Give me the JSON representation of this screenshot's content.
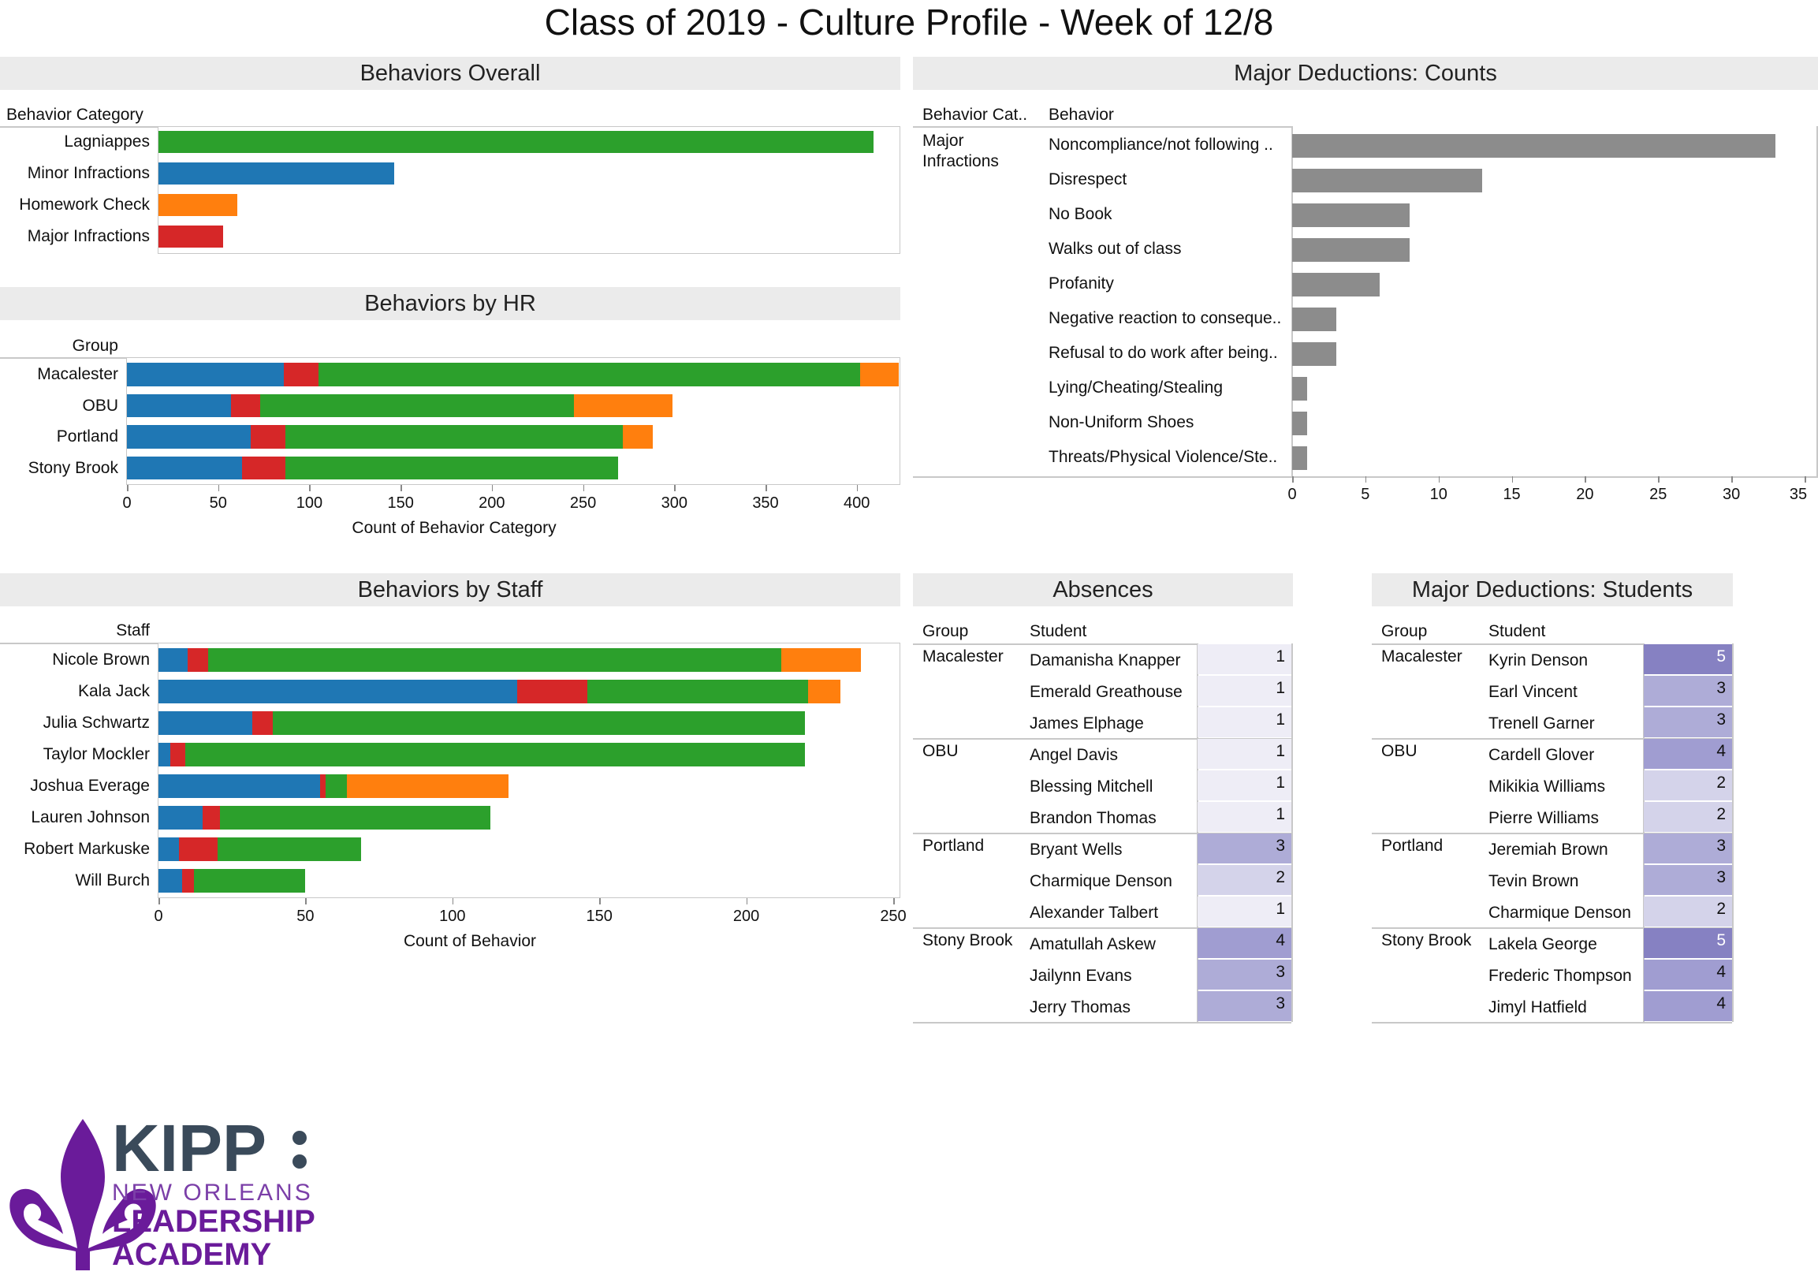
{
  "title": "Class of 2019 - Culture Profile - Week of 12/8",
  "colors": {
    "minor_infractions": "#1f77b4",
    "major_infractions": "#d62728",
    "lagniappes": "#2ca02c",
    "homework_check": "#ff7f0e",
    "major_counts_bar": "#8c8c8c",
    "heat_1": "#eeedf6",
    "heat_2": "#d4d3ea",
    "heat_3": "#aeacd7",
    "heat_4": "#a09dd1",
    "heat_5": "#8681c2"
  },
  "chart_data": [
    {
      "id": "behaviors_overall",
      "type": "bar",
      "title": "Behaviors Overall",
      "row_header": "Behavior Category",
      "categories": [
        "Lagniappes",
        "Minor Infractions",
        "Homework Check",
        "Major Infractions"
      ],
      "values": [
        407,
        134,
        45,
        37
      ],
      "series_colors": [
        "lagniappes",
        "minor_infractions",
        "homework_check",
        "major_infractions"
      ],
      "ylim": [
        0,
        420
      ]
    },
    {
      "id": "behaviors_by_hr",
      "type": "bar",
      "stacked": true,
      "title": "Behaviors by HR",
      "row_header": "Group",
      "xlabel": "Count of Behavior Category",
      "categories": [
        "Macalester",
        "OBU",
        "Portland",
        "Stony Brook"
      ],
      "series": [
        {
          "color_key": "minor_infractions",
          "values": [
            86,
            57,
            68,
            63
          ]
        },
        {
          "color_key": "major_infractions",
          "values": [
            19,
            16,
            19,
            24
          ]
        },
        {
          "color_key": "lagniappes",
          "values": [
            297,
            172,
            185,
            182
          ]
        },
        {
          "color_key": "homework_check",
          "values": [
            21,
            54,
            16,
            0
          ]
        }
      ],
      "xlim": [
        0,
        420
      ],
      "ticks": [
        0,
        50,
        100,
        150,
        200,
        250,
        300,
        350,
        400
      ]
    },
    {
      "id": "behaviors_by_staff",
      "type": "bar",
      "stacked": true,
      "title": "Behaviors by Staff",
      "row_header": "Staff",
      "xlabel": "Count of Behavior",
      "categories": [
        "Nicole Brown",
        "Kala Jack",
        "Julia Schwartz",
        "Taylor Mockler",
        "Joshua Everage",
        "Lauren Johnson",
        "Robert Markuske",
        "Will Burch"
      ],
      "series": [
        {
          "color_key": "minor_infractions",
          "values": [
            10,
            122,
            32,
            4,
            55,
            15,
            7,
            8
          ]
        },
        {
          "color_key": "major_infractions",
          "values": [
            7,
            24,
            7,
            5,
            2,
            6,
            13,
            4
          ]
        },
        {
          "color_key": "lagniappes",
          "values": [
            195,
            75,
            181,
            211,
            7,
            92,
            49,
            38
          ]
        },
        {
          "color_key": "homework_check",
          "values": [
            27,
            11,
            0,
            0,
            55,
            0,
            0,
            0
          ]
        }
      ],
      "xlim": [
        0,
        250
      ],
      "ticks": [
        0,
        50,
        100,
        150,
        200,
        250
      ]
    },
    {
      "id": "major_deductions_counts",
      "type": "bar",
      "title": "Major Deductions: Counts",
      "row_headers": [
        "Behavior Cat..",
        "Behavior"
      ],
      "group_label": "Major Infractions",
      "categories": [
        "Noncompliance/not following ..",
        "Disrespect",
        "No Book",
        "Walks out of class",
        "Profanity",
        "Negative reaction to conseque..",
        "Refusal to do work after being..",
        "Lying/Cheating/Stealing",
        "Non-Uniform Shoes",
        "Threats/Physical Violence/Ste.."
      ],
      "values": [
        33,
        13,
        8,
        8,
        6,
        3,
        3,
        1,
        1,
        1
      ],
      "xlim": [
        0,
        35
      ],
      "ticks": [
        0,
        5,
        10,
        15,
        20,
        25,
        30,
        35
      ]
    },
    {
      "id": "absences",
      "type": "table",
      "title": "Absences",
      "columns": [
        "Group",
        "Student"
      ],
      "groups": [
        {
          "group": "Macalester",
          "rows": [
            {
              "student": "Damanisha Knapper",
              "value": 1
            },
            {
              "student": "Emerald Greathouse",
              "value": 1
            },
            {
              "student": "James Elphage",
              "value": 1
            }
          ]
        },
        {
          "group": "OBU",
          "rows": [
            {
              "student": "Angel Davis",
              "value": 1
            },
            {
              "student": "Blessing Mitchell",
              "value": 1
            },
            {
              "student": "Brandon Thomas",
              "value": 1
            }
          ]
        },
        {
          "group": "Portland",
          "rows": [
            {
              "student": "Bryant Wells",
              "value": 3
            },
            {
              "student": "Charmique Denson",
              "value": 2
            },
            {
              "student": "Alexander Talbert",
              "value": 1
            }
          ]
        },
        {
          "group": "Stony Brook",
          "rows": [
            {
              "student": "Amatullah Askew",
              "value": 4
            },
            {
              "student": "Jailynn Evans",
              "value": 3
            },
            {
              "student": "Jerry Thomas",
              "value": 3
            }
          ]
        }
      ]
    },
    {
      "id": "major_deductions_students",
      "type": "table",
      "title": "Major Deductions: Students",
      "columns": [
        "Group",
        "Student"
      ],
      "groups": [
        {
          "group": "Macalester",
          "rows": [
            {
              "student": "Kyrin Denson",
              "value": 5
            },
            {
              "student": "Earl Vincent",
              "value": 3
            },
            {
              "student": "Trenell Garner",
              "value": 3
            }
          ]
        },
        {
          "group": "OBU",
          "rows": [
            {
              "student": "Cardell Glover",
              "value": 4
            },
            {
              "student": "Mikikia Williams",
              "value": 2
            },
            {
              "student": "Pierre Williams",
              "value": 2
            }
          ]
        },
        {
          "group": "Portland",
          "rows": [
            {
              "student": "Jeremiah Brown",
              "value": 3
            },
            {
              "student": "Tevin Brown",
              "value": 3
            },
            {
              "student": "Charmique Denson",
              "value": 2
            }
          ]
        },
        {
          "group": "Stony Brook",
          "rows": [
            {
              "student": "Lakela George",
              "value": 5
            },
            {
              "student": "Frederic Thompson",
              "value": 4
            },
            {
              "student": "Jimyl Hatfield",
              "value": 4
            }
          ]
        }
      ]
    }
  ],
  "logo": {
    "line1": "KIPP",
    "line2": "NEW ORLEANS",
    "line3": "LEADERSHIP",
    "line4": "ACADEMY",
    "icon": "fleur-de-lis-icon"
  }
}
